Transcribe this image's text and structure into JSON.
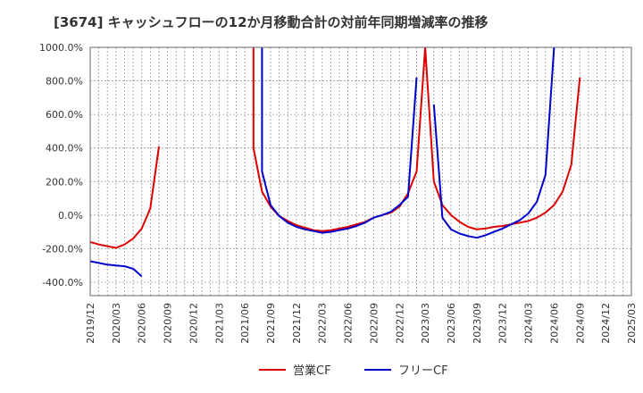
{
  "chart_data": {
    "type": "line",
    "title": "[3674]  キャッシュフローの12か月移動合計の対前年同期増減率の推移",
    "xlabel": "",
    "ylabel": "",
    "ylim": [
      -480,
      1000
    ],
    "yticks": [
      1000,
      800,
      600,
      400,
      200,
      0,
      -200,
      -400
    ],
    "ytick_labels": [
      "1000.0%",
      "800.0%",
      "600.0%",
      "400.0%",
      "200.0%",
      "0.0%",
      "-200.0%",
      "-400.0%"
    ],
    "x_range": [
      "2019-12",
      "2025-03"
    ],
    "xtick_labels": [
      "2019/12",
      "2020/03",
      "2020/06",
      "2020/09",
      "2020/12",
      "2021/03",
      "2021/06",
      "2021/09",
      "2021/12",
      "2022/03",
      "2022/06",
      "2022/09",
      "2022/12",
      "2023/03",
      "2023/06",
      "2023/09",
      "2023/12",
      "2024/03",
      "2024/06",
      "2024/09",
      "2024/12",
      "2025/03"
    ],
    "grid": true,
    "legend_position": "bottom",
    "series": [
      {
        "name": "営業CF",
        "color": "#dd0000",
        "points": [
          [
            "2019-12",
            -160
          ],
          [
            "2020-01",
            -175
          ],
          [
            "2020-02",
            -185
          ],
          [
            "2020-03",
            -195
          ],
          [
            "2020-04",
            -175
          ],
          [
            "2020-05",
            -140
          ],
          [
            "2020-06",
            -80
          ],
          [
            "2020-07",
            40
          ],
          [
            "2020-08",
            410
          ],
          null,
          [
            "2021-07",
            1000
          ],
          [
            "2021-07",
            400
          ],
          [
            "2021-08",
            140
          ],
          [
            "2021-09",
            50
          ],
          [
            "2021-10",
            -5
          ],
          [
            "2021-11",
            -35
          ],
          [
            "2021-12",
            -60
          ],
          [
            "2022-01",
            -75
          ],
          [
            "2022-02",
            -90
          ],
          [
            "2022-03",
            -95
          ],
          [
            "2022-04",
            -90
          ],
          [
            "2022-05",
            -80
          ],
          [
            "2022-06",
            -70
          ],
          [
            "2022-07",
            -55
          ],
          [
            "2022-08",
            -40
          ],
          [
            "2022-09",
            -15
          ],
          [
            "2022-10",
            0
          ],
          [
            "2022-11",
            15
          ],
          [
            "2022-12",
            50
          ],
          [
            "2023-01",
            130
          ],
          [
            "2023-02",
            260
          ],
          [
            "2023-03",
            1000
          ],
          [
            "2023-04",
            200
          ],
          [
            "2023-05",
            60
          ],
          [
            "2023-06",
            0
          ],
          [
            "2023-07",
            -40
          ],
          [
            "2023-08",
            -70
          ],
          [
            "2023-09",
            -85
          ],
          [
            "2023-10",
            -80
          ],
          [
            "2023-11",
            -70
          ],
          [
            "2023-12",
            -65
          ],
          [
            "2024-01",
            -55
          ],
          [
            "2024-02",
            -45
          ],
          [
            "2024-03",
            -35
          ],
          [
            "2024-04",
            -15
          ],
          [
            "2024-05",
            15
          ],
          [
            "2024-06",
            60
          ],
          [
            "2024-07",
            140
          ],
          [
            "2024-08",
            300
          ],
          [
            "2024-09",
            820
          ]
        ]
      },
      {
        "name": "フリーCF",
        "color": "#0000cc",
        "points": [
          [
            "2019-12",
            -275
          ],
          [
            "2020-01",
            -285
          ],
          [
            "2020-02",
            -295
          ],
          [
            "2020-03",
            -300
          ],
          [
            "2020-04",
            -305
          ],
          [
            "2020-05",
            -320
          ],
          [
            "2020-06",
            -365
          ],
          null,
          [
            "2021-08",
            1000
          ],
          [
            "2021-08",
            260
          ],
          [
            "2021-09",
            60
          ],
          [
            "2021-10",
            -5
          ],
          [
            "2021-11",
            -45
          ],
          [
            "2021-12",
            -70
          ],
          [
            "2022-01",
            -85
          ],
          [
            "2022-02",
            -95
          ],
          [
            "2022-03",
            -105
          ],
          [
            "2022-04",
            -100
          ],
          [
            "2022-05",
            -90
          ],
          [
            "2022-06",
            -80
          ],
          [
            "2022-07",
            -65
          ],
          [
            "2022-08",
            -45
          ],
          [
            "2022-09",
            -15
          ],
          [
            "2022-10",
            0
          ],
          [
            "2022-11",
            20
          ],
          [
            "2022-12",
            60
          ],
          [
            "2023-01",
            110
          ],
          [
            "2023-02",
            820
          ],
          null,
          [
            "2023-04",
            660
          ],
          [
            "2023-05",
            -15
          ],
          [
            "2023-06",
            -85
          ],
          [
            "2023-07",
            -110
          ],
          [
            "2023-08",
            -125
          ],
          [
            "2023-09",
            -135
          ],
          [
            "2023-10",
            -120
          ],
          [
            "2023-11",
            -100
          ],
          [
            "2023-12",
            -80
          ],
          [
            "2024-01",
            -55
          ],
          [
            "2024-02",
            -30
          ],
          [
            "2024-03",
            10
          ],
          [
            "2024-04",
            80
          ],
          [
            "2024-05",
            240
          ],
          [
            "2024-06",
            1000
          ]
        ]
      }
    ]
  }
}
